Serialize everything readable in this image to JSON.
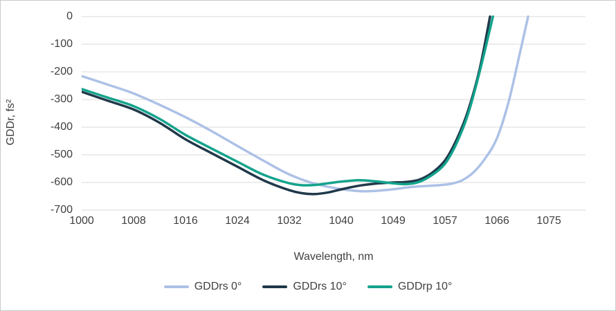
{
  "chart_data": {
    "type": "line",
    "title": "",
    "xlabel": "Wavelength, nm",
    "ylabel": "GDDr, fs²",
    "xlim": [
      1000,
      1081
    ],
    "ylim": [
      -700,
      0
    ],
    "x_tick_values": [
      1000,
      1008,
      1016,
      1024,
      1032,
      1040,
      1049,
      1057,
      1066,
      1075
    ],
    "y_tick_values": [
      0,
      -100,
      -200,
      -300,
      -400,
      -500,
      -600,
      -700
    ],
    "grid": "horizontal",
    "gridline_color": "#e0e0e0",
    "text_color": "#404040",
    "legend_position": "bottom",
    "series": [
      {
        "name": "GDDrs 0°",
        "color": "#adc1e6",
        "points": [
          [
            1000,
            -215
          ],
          [
            1004,
            -246
          ],
          [
            1008,
            -278
          ],
          [
            1012,
            -319
          ],
          [
            1016,
            -364
          ],
          [
            1020,
            -414
          ],
          [
            1024,
            -468
          ],
          [
            1028,
            -521
          ],
          [
            1032,
            -571
          ],
          [
            1036,
            -605
          ],
          [
            1040,
            -624
          ],
          [
            1044,
            -632
          ],
          [
            1048,
            -627
          ],
          [
            1052,
            -616
          ],
          [
            1056,
            -610
          ],
          [
            1058,
            -605
          ],
          [
            1060,
            -592
          ],
          [
            1062,
            -562
          ],
          [
            1064,
            -512
          ],
          [
            1066,
            -440
          ],
          [
            1068,
            -310
          ],
          [
            1070,
            -130
          ],
          [
            1071.4,
            0
          ]
        ]
      },
      {
        "name": "GDDrs 10°",
        "color": "#20394a",
        "points": [
          [
            1000,
            -272
          ],
          [
            1004,
            -304
          ],
          [
            1008,
            -336
          ],
          [
            1012,
            -384
          ],
          [
            1016,
            -444
          ],
          [
            1020,
            -494
          ],
          [
            1024,
            -543
          ],
          [
            1028,
            -592
          ],
          [
            1032,
            -628
          ],
          [
            1034,
            -639
          ],
          [
            1036,
            -642
          ],
          [
            1038,
            -636
          ],
          [
            1040,
            -625
          ],
          [
            1043,
            -612
          ],
          [
            1046,
            -604
          ],
          [
            1049,
            -600
          ],
          [
            1051,
            -598
          ],
          [
            1053,
            -590
          ],
          [
            1055,
            -565
          ],
          [
            1057,
            -520
          ],
          [
            1059,
            -445
          ],
          [
            1061,
            -340
          ],
          [
            1063,
            -190
          ],
          [
            1064.8,
            0
          ]
        ]
      },
      {
        "name": "GDDrp 10°",
        "color": "#13a38c",
        "points": [
          [
            1000,
            -262
          ],
          [
            1004,
            -293
          ],
          [
            1008,
            -324
          ],
          [
            1012,
            -370
          ],
          [
            1016,
            -428
          ],
          [
            1020,
            -477
          ],
          [
            1024,
            -525
          ],
          [
            1028,
            -572
          ],
          [
            1032,
            -603
          ],
          [
            1034,
            -610
          ],
          [
            1036,
            -609
          ],
          [
            1038,
            -603
          ],
          [
            1040,
            -597
          ],
          [
            1043,
            -592
          ],
          [
            1046,
            -596
          ],
          [
            1049,
            -603
          ],
          [
            1051,
            -606
          ],
          [
            1053,
            -598
          ],
          [
            1055,
            -573
          ],
          [
            1057,
            -532
          ],
          [
            1059,
            -458
          ],
          [
            1061,
            -352
          ],
          [
            1063,
            -200
          ],
          [
            1065.3,
            0
          ]
        ]
      }
    ]
  }
}
